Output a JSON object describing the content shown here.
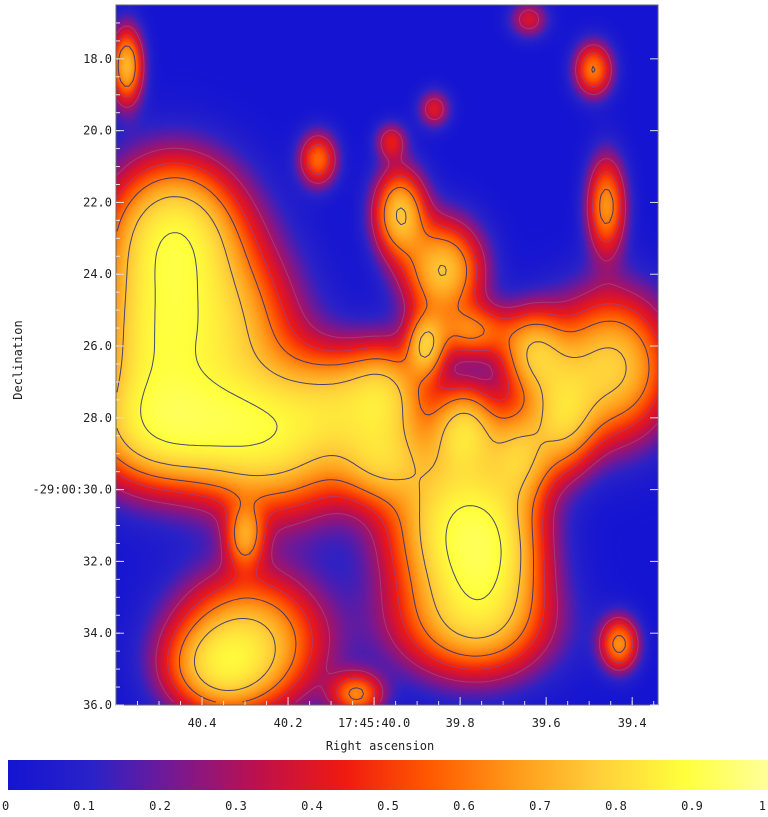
{
  "chart_data": {
    "type": "heatmap",
    "xlabel": "Right ascension",
    "ylabel": "Declination",
    "x_ticks": [
      {
        "value": 40.4,
        "label": "40.4"
      },
      {
        "value": 40.2,
        "label": "40.2"
      },
      {
        "value": 40.0,
        "label": "17:45:40.0"
      },
      {
        "value": 39.8,
        "label": "39.8"
      },
      {
        "value": 39.6,
        "label": "39.6"
      },
      {
        "value": 39.4,
        "label": "39.4"
      }
    ],
    "y_ticks": [
      {
        "value": 18,
        "label": "18.0"
      },
      {
        "value": 20,
        "label": "20.0"
      },
      {
        "value": 22,
        "label": "22.0"
      },
      {
        "value": 24,
        "label": "24.0"
      },
      {
        "value": 26,
        "label": "26.0"
      },
      {
        "value": 28,
        "label": "28.0"
      },
      {
        "value": 30,
        "label": "-29:00:30.0"
      },
      {
        "value": 32,
        "label": "32.0"
      },
      {
        "value": 34,
        "label": "34.0"
      },
      {
        "value": 36,
        "label": "36.0"
      }
    ],
    "xlim": [
      40.6,
      39.34
    ],
    "ylim": [
      36.0,
      16.5
    ],
    "colorbar": {
      "ticks": [
        {
          "value": 0.0,
          "label": "0"
        },
        {
          "value": 0.1,
          "label": "0.1"
        },
        {
          "value": 0.2,
          "label": "0.2"
        },
        {
          "value": 0.3,
          "label": "0.3"
        },
        {
          "value": 0.4,
          "label": "0.4"
        },
        {
          "value": 0.5,
          "label": "0.5"
        },
        {
          "value": 0.6,
          "label": "0.6"
        },
        {
          "value": 0.7,
          "label": "0.7"
        },
        {
          "value": 0.8,
          "label": "0.8"
        },
        {
          "value": 0.9,
          "label": "0.9"
        },
        {
          "value": 1.0,
          "label": "1"
        }
      ],
      "colors": [
        "#1414d2",
        "#2a22c8",
        "#7a1890",
        "#c0104a",
        "#f01a10",
        "#ff5a00",
        "#ff9a1a",
        "#ffcf3a",
        "#ffff3c",
        "#ffff9a"
      ]
    },
    "sources": [
      {
        "ra": 40.575,
        "dec": 18.2,
        "sx": 0.025,
        "sy": 0.7,
        "amp": 0.75
      },
      {
        "ra": 40.13,
        "dec": 20.8,
        "sx": 0.03,
        "sy": 0.5,
        "amp": 0.5
      },
      {
        "ra": 39.49,
        "dec": 18.3,
        "sx": 0.03,
        "sy": 0.5,
        "amp": 0.55
      },
      {
        "ra": 39.46,
        "dec": 22.1,
        "sx": 0.03,
        "sy": 0.9,
        "amp": 0.62
      },
      {
        "ra": 40.46,
        "dec": 22.8,
        "sx": 0.1,
        "sy": 1.3,
        "amp": 0.92
      },
      {
        "ra": 40.52,
        "dec": 26.0,
        "sx": 0.09,
        "sy": 2.0,
        "amp": 0.85
      },
      {
        "ra": 40.36,
        "dec": 25.5,
        "sx": 0.11,
        "sy": 1.6,
        "amp": 0.8
      },
      {
        "ra": 40.45,
        "dec": 28.3,
        "sx": 0.14,
        "sy": 1.0,
        "amp": 0.85
      },
      {
        "ra": 40.23,
        "dec": 28.6,
        "sx": 0.12,
        "sy": 1.4,
        "amp": 0.85
      },
      {
        "ra": 40.07,
        "dec": 27.6,
        "sx": 0.09,
        "sy": 1.0,
        "amp": 0.55
      },
      {
        "ra": 39.97,
        "dec": 27.3,
        "sx": 0.06,
        "sy": 0.9,
        "amp": 0.6
      },
      {
        "ra": 39.98,
        "dec": 29.2,
        "sx": 0.07,
        "sy": 0.8,
        "amp": 0.6
      },
      {
        "ra": 39.94,
        "dec": 22.3,
        "sx": 0.04,
        "sy": 0.8,
        "amp": 0.8
      },
      {
        "ra": 39.84,
        "dec": 23.9,
        "sx": 0.06,
        "sy": 0.9,
        "amp": 0.82
      },
      {
        "ra": 39.88,
        "dec": 26.0,
        "sx": 0.03,
        "sy": 0.6,
        "amp": 0.7
      },
      {
        "ra": 39.77,
        "dec": 25.6,
        "sx": 0.06,
        "sy": 0.5,
        "amp": 0.5
      },
      {
        "ra": 39.79,
        "dec": 28.3,
        "sx": 0.05,
        "sy": 0.8,
        "amp": 0.75
      },
      {
        "ra": 39.82,
        "dec": 31.0,
        "sx": 0.1,
        "sy": 1.6,
        "amp": 0.92
      },
      {
        "ra": 39.73,
        "dec": 31.8,
        "sx": 0.08,
        "sy": 1.4,
        "amp": 0.8
      },
      {
        "ra": 39.77,
        "dec": 33.8,
        "sx": 0.12,
        "sy": 1.0,
        "amp": 0.55
      },
      {
        "ra": 39.63,
        "dec": 26.2,
        "sx": 0.05,
        "sy": 0.8,
        "amp": 0.7
      },
      {
        "ra": 39.45,
        "dec": 26.6,
        "sx": 0.09,
        "sy": 1.3,
        "amp": 0.88
      },
      {
        "ra": 39.56,
        "dec": 28.0,
        "sx": 0.05,
        "sy": 1.0,
        "amp": 0.7
      },
      {
        "ra": 39.66,
        "dec": 29.0,
        "sx": 0.05,
        "sy": 0.9,
        "amp": 0.65
      },
      {
        "ra": 40.29,
        "dec": 34.2,
        "sx": 0.11,
        "sy": 1.2,
        "amp": 0.82
      },
      {
        "ra": 40.36,
        "dec": 35.0,
        "sx": 0.08,
        "sy": 0.8,
        "amp": 0.6
      },
      {
        "ra": 40.3,
        "dec": 31.3,
        "sx": 0.03,
        "sy": 0.6,
        "amp": 0.55
      },
      {
        "ra": 39.43,
        "dec": 34.3,
        "sx": 0.03,
        "sy": 0.5,
        "amp": 0.6
      },
      {
        "ra": 40.04,
        "dec": 35.7,
        "sx": 0.04,
        "sy": 0.4,
        "amp": 0.55
      },
      {
        "ra": 39.86,
        "dec": 19.4,
        "sx": 0.025,
        "sy": 0.35,
        "amp": 0.3
      },
      {
        "ra": 39.96,
        "dec": 20.3,
        "sx": 0.025,
        "sy": 0.35,
        "amp": 0.3
      },
      {
        "ra": 39.64,
        "dec": 16.9,
        "sx": 0.03,
        "sy": 0.35,
        "amp": 0.28
      }
    ],
    "contour_levels": [
      0.3,
      0.45,
      0.6,
      0.75,
      0.88
    ]
  }
}
